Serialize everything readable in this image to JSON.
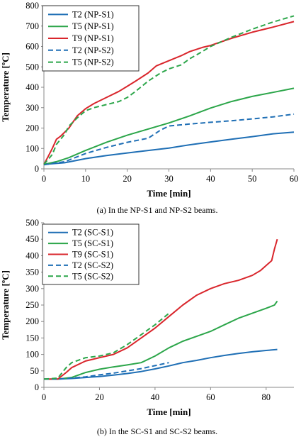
{
  "chart_data": [
    {
      "type": "line",
      "caption": "(a) In the NP-S1 and NP-S2 beams.",
      "xlabel": "Time [min]",
      "ylabel": "Temperature [ºC]",
      "xlim": [
        0,
        60
      ],
      "ylim": [
        0,
        800
      ],
      "xticks": [
        0,
        10,
        20,
        30,
        40,
        50,
        60
      ],
      "yticks": [
        0,
        100,
        200,
        300,
        400,
        500,
        600,
        700,
        800
      ],
      "grid": false,
      "legend_position": "top-left",
      "series": [
        {
          "name": "T2 (NP-S1)",
          "color": "#1f6fb5",
          "dash": "solid",
          "x": [
            0,
            5,
            10,
            15,
            20,
            25,
            30,
            35,
            40,
            45,
            50,
            55,
            60
          ],
          "y": [
            22,
            30,
            50,
            65,
            78,
            90,
            102,
            118,
            132,
            145,
            158,
            172,
            180
          ]
        },
        {
          "name": "T5 (NP-S1)",
          "color": "#2ca64a",
          "dash": "solid",
          "x": [
            0,
            3,
            6,
            10,
            15,
            20,
            25,
            30,
            35,
            40,
            45,
            50,
            55,
            60
          ],
          "y": [
            22,
            35,
            55,
            90,
            130,
            165,
            195,
            225,
            260,
            298,
            330,
            355,
            375,
            395
          ]
        },
        {
          "name": "T9 (NP-S1)",
          "color": "#d9262c",
          "dash": "solid",
          "x": [
            0,
            1,
            2,
            3,
            4,
            6,
            8,
            10,
            12,
            15,
            18,
            20,
            22,
            25,
            27,
            30,
            33,
            35,
            38,
            40,
            45,
            50,
            55,
            60
          ],
          "y": [
            22,
            60,
            100,
            145,
            160,
            200,
            260,
            295,
            320,
            350,
            380,
            405,
            430,
            470,
            505,
            530,
            555,
            575,
            595,
            605,
            640,
            670,
            695,
            722
          ]
        },
        {
          "name": "T2 (NP-S2)",
          "color": "#1f6fb5",
          "dash": "dashed",
          "x": [
            0,
            5,
            10,
            15,
            20,
            25,
            28,
            30,
            35,
            40,
            45,
            50,
            55,
            60
          ],
          "y": [
            20,
            35,
            75,
            105,
            130,
            150,
            190,
            210,
            220,
            228,
            236,
            245,
            255,
            268
          ]
        },
        {
          "name": "T5 (NP-S2)",
          "color": "#2ca64a",
          "dash": "dashed",
          "x": [
            0,
            2,
            3,
            5,
            6,
            8,
            10,
            12,
            15,
            18,
            20,
            22,
            25,
            28,
            30,
            33,
            35,
            38,
            40,
            45,
            50,
            55,
            60
          ],
          "y": [
            22,
            70,
            120,
            170,
            210,
            250,
            285,
            300,
            315,
            330,
            350,
            380,
            430,
            470,
            490,
            510,
            540,
            575,
            600,
            645,
            685,
            720,
            750
          ]
        }
      ]
    },
    {
      "type": "line",
      "caption": "(b) In the SC-S1 and SC-S2 beams.",
      "xlabel": "Time [min]",
      "ylabel": "Temperature [ºC]",
      "xlim": [
        0,
        90
      ],
      "ylim": [
        0,
        500
      ],
      "xticks": [
        0,
        20,
        40,
        60,
        80
      ],
      "yticks": [
        0,
        50,
        100,
        150,
        200,
        250,
        300,
        350,
        400,
        450,
        500
      ],
      "grid": false,
      "legend_position": "top-left",
      "series": [
        {
          "name": "T2 (SC-S1)",
          "color": "#1f6fb5",
          "dash": "solid",
          "x": [
            0,
            5,
            10,
            15,
            20,
            25,
            30,
            35,
            40,
            45,
            50,
            55,
            60,
            65,
            70,
            75,
            80,
            84
          ],
          "y": [
            25,
            25,
            27,
            30,
            33,
            37,
            42,
            48,
            56,
            65,
            75,
            82,
            90,
            97,
            103,
            108,
            112,
            115
          ]
        },
        {
          "name": "T5 (SC-S1)",
          "color": "#2ca64a",
          "dash": "solid",
          "x": [
            0,
            5,
            10,
            15,
            20,
            25,
            30,
            35,
            40,
            45,
            50,
            55,
            60,
            65,
            70,
            75,
            80,
            83,
            84
          ],
          "y": [
            25,
            25,
            30,
            45,
            55,
            62,
            68,
            75,
            95,
            120,
            140,
            155,
            170,
            190,
            210,
            225,
            240,
            250,
            262
          ]
        },
        {
          "name": "T9 (SC-S1)",
          "color": "#d9262c",
          "dash": "solid",
          "x": [
            0,
            5,
            8,
            10,
            15,
            20,
            25,
            30,
            35,
            40,
            45,
            50,
            55,
            60,
            65,
            70,
            75,
            78,
            80,
            82,
            83,
            84
          ],
          "y": [
            25,
            25,
            45,
            60,
            80,
            90,
            100,
            120,
            150,
            180,
            215,
            250,
            280,
            300,
            315,
            325,
            340,
            355,
            370,
            385,
            420,
            450
          ]
        },
        {
          "name": "T2 (SC-S2)",
          "color": "#1f6fb5",
          "dash": "dashed",
          "x": [
            0,
            5,
            10,
            15,
            20,
            25,
            30,
            35,
            40,
            45
          ],
          "y": [
            25,
            25,
            28,
            32,
            38,
            43,
            50,
            57,
            66,
            75
          ]
        },
        {
          "name": "T5 (SC-S2)",
          "color": "#2ca64a",
          "dash": "dashed",
          "x": [
            0,
            5,
            8,
            10,
            15,
            20,
            25,
            30,
            35,
            40,
            45
          ],
          "y": [
            25,
            28,
            60,
            75,
            90,
            95,
            105,
            130,
            160,
            190,
            225
          ]
        }
      ]
    }
  ]
}
